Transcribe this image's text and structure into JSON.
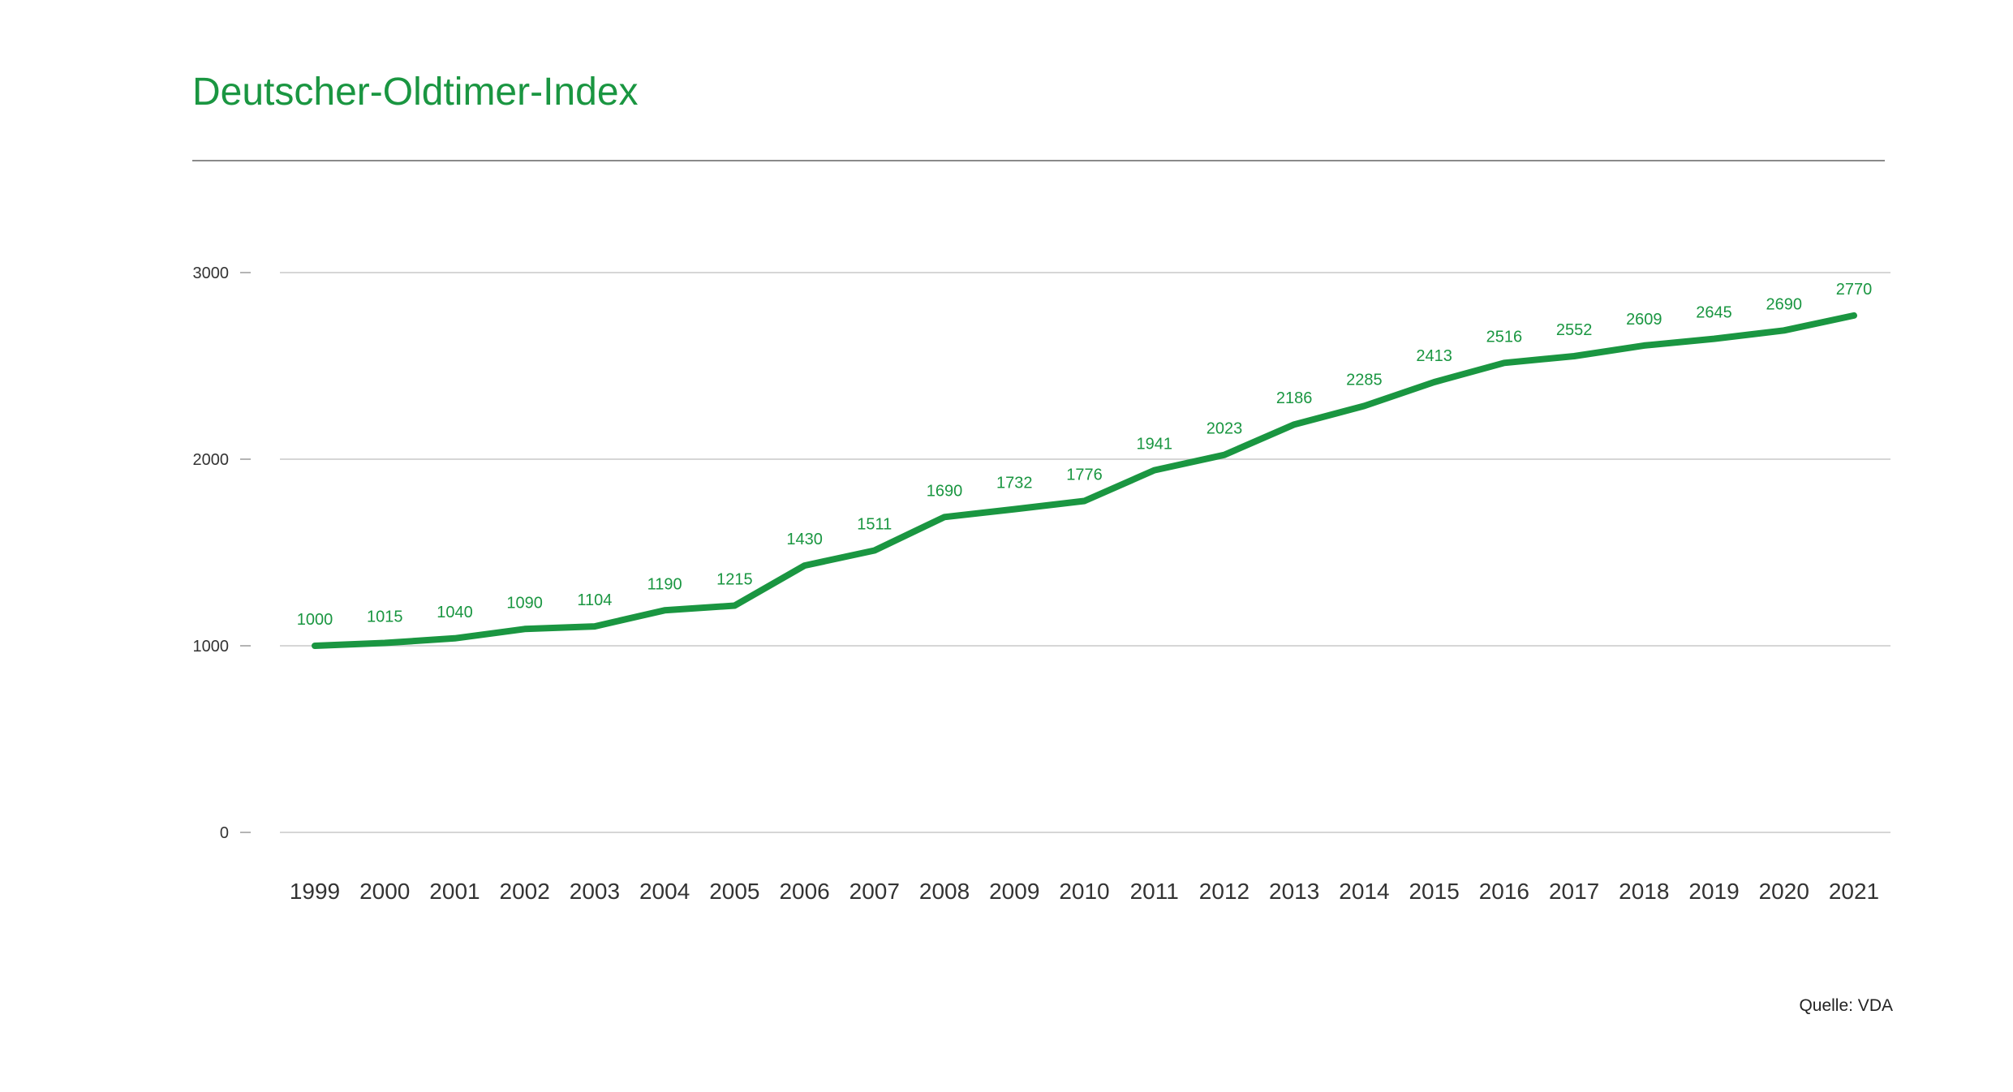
{
  "title": "Deutscher-Oldtimer-Index",
  "source": "Quelle: VDA",
  "colors": {
    "accent": "#1a9641",
    "grid": "#c8c8c8",
    "axis_text": "#333333"
  },
  "chart_data": {
    "type": "line",
    "title": "Deutscher-Oldtimer-Index",
    "xlabel": "",
    "ylabel": "",
    "categories": [
      "1999",
      "2000",
      "2001",
      "2002",
      "2003",
      "2004",
      "2005",
      "2006",
      "2007",
      "2008",
      "2009",
      "2010",
      "2011",
      "2012",
      "2013",
      "2014",
      "2015",
      "2016",
      "2017",
      "2018",
      "2019",
      "2020",
      "2021"
    ],
    "series": [
      {
        "values": [
          1000,
          1015,
          1040,
          1090,
          1104,
          1190,
          1215,
          1430,
          1511,
          1690,
          1732,
          1776,
          1941,
          2023,
          2186,
          2285,
          2413,
          2516,
          2552,
          2609,
          2645,
          2690,
          2770
        ],
        "color": "#1a9641"
      }
    ],
    "yticks": [
      0,
      1000,
      2000,
      3000
    ],
    "ylim": [
      0,
      3000
    ],
    "grid": true,
    "data_labels": true,
    "legend": "none"
  }
}
